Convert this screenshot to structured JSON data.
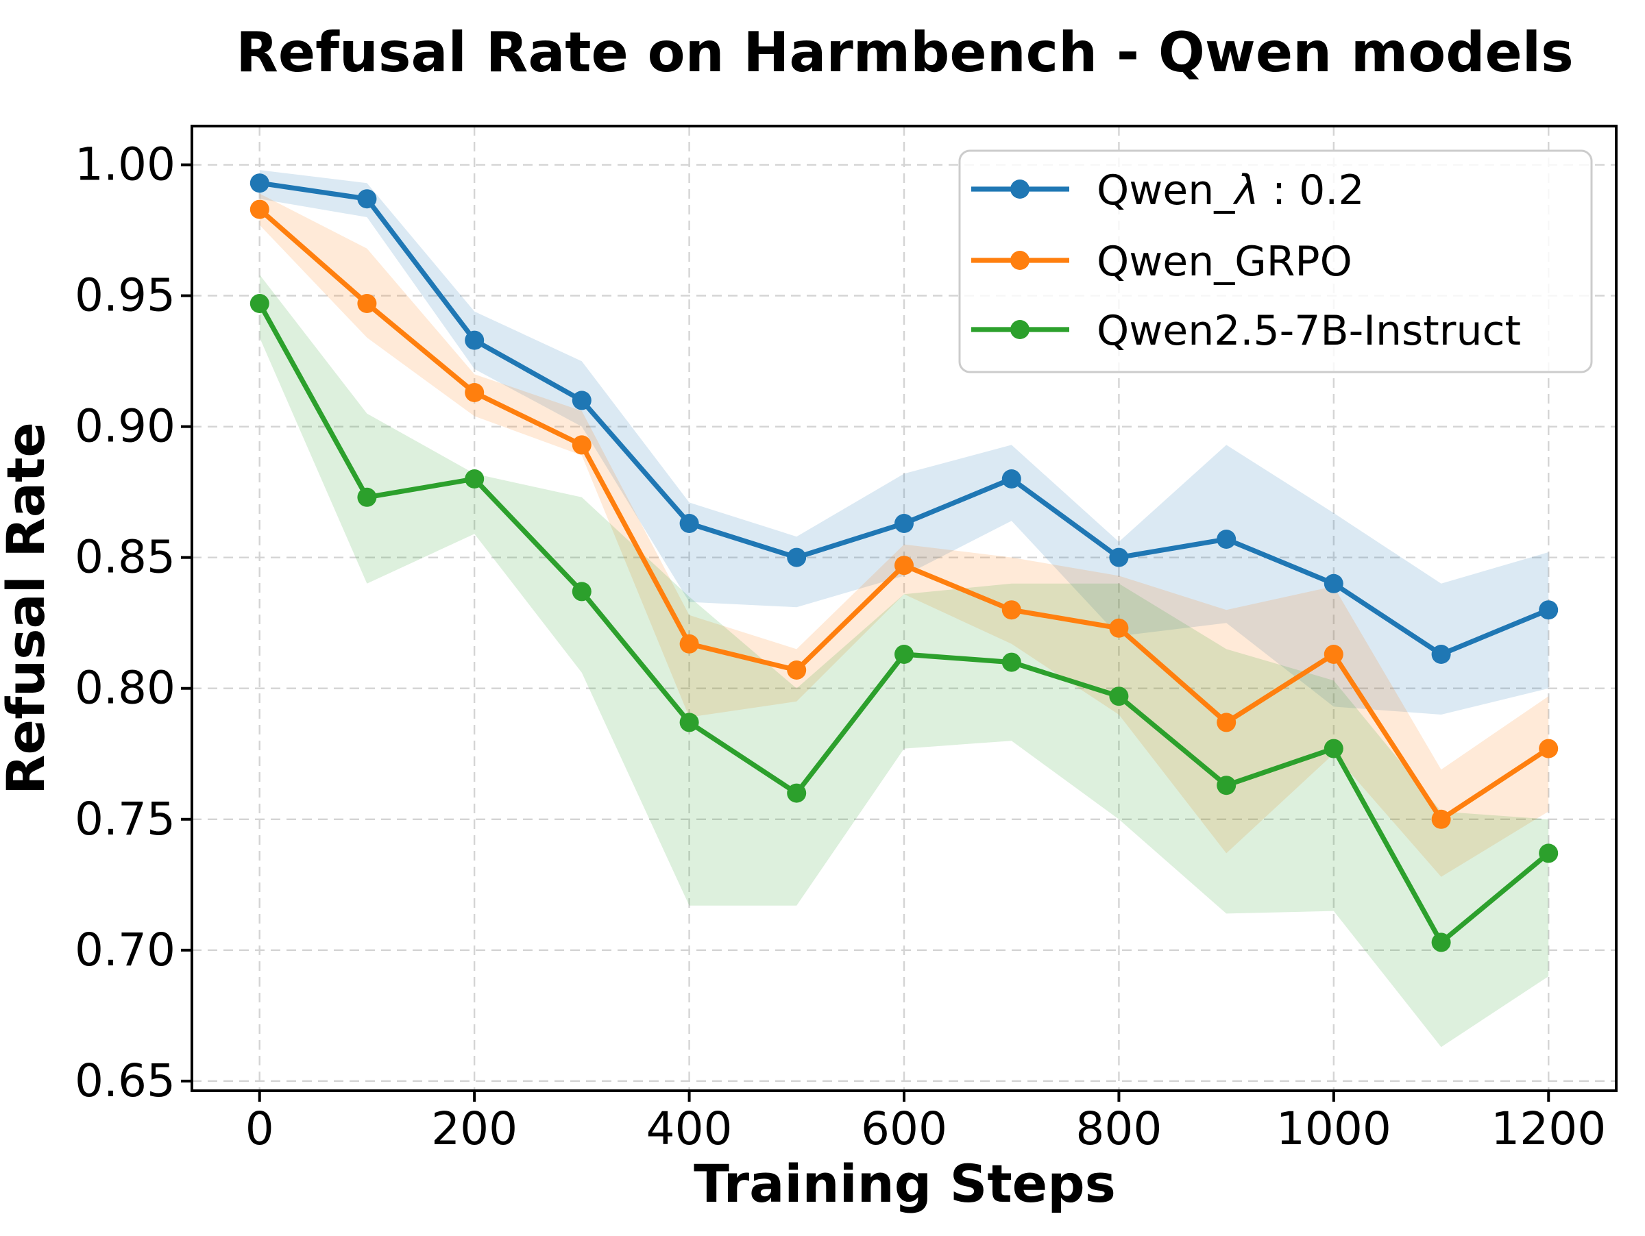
{
  "title": "Refusal Rate on Harmbench - Qwen models",
  "chart_data": {
    "type": "line",
    "title": "Refusal Rate on Harmbench - Qwen models",
    "xlabel": "Training Steps",
    "ylabel": "Refusal Rate",
    "x": [
      0,
      100,
      200,
      300,
      400,
      500,
      600,
      700,
      800,
      900,
      1000,
      1100,
      1200
    ],
    "xticks": [
      0,
      200,
      400,
      600,
      800,
      1000,
      1200
    ],
    "yticks": [
      0.65,
      0.7,
      0.75,
      0.8,
      0.85,
      0.9,
      0.95,
      1.0
    ],
    "xlim": [
      -63,
      1263
    ],
    "ylim": [
      0.6463,
      1.0148
    ],
    "grid": true,
    "grid_color": "#d4d4d4",
    "legend_position": "upper right",
    "band_opacity": 0.16,
    "series": [
      {
        "name": "Qwen_λ : 0.2",
        "label_parts": [
          {
            "t": "Qwen_"
          },
          {
            "t": "λ",
            "i": true
          },
          {
            "t": " : 0.2"
          }
        ],
        "color": "#1f77b4",
        "values": [
          0.993,
          0.987,
          0.933,
          0.91,
          0.863,
          0.85,
          0.863,
          0.88,
          0.85,
          0.857,
          0.84,
          0.813,
          0.83
        ],
        "band_low": [
          0.987,
          0.98,
          0.922,
          0.9,
          0.833,
          0.831,
          0.843,
          0.864,
          0.82,
          0.825,
          0.793,
          0.79,
          0.8
        ],
        "band_high": [
          0.998,
          0.993,
          0.944,
          0.925,
          0.871,
          0.858,
          0.882,
          0.893,
          0.856,
          0.893,
          0.867,
          0.84,
          0.852
        ]
      },
      {
        "name": "Qwen_GRPO",
        "label_parts": [
          {
            "t": "Qwen_GRPO"
          }
        ],
        "color": "#ff7f0e",
        "values": [
          0.983,
          0.947,
          0.913,
          0.893,
          0.817,
          0.807,
          0.847,
          0.83,
          0.823,
          0.787,
          0.813,
          0.75,
          0.777
        ],
        "band_low": [
          0.977,
          0.934,
          0.904,
          0.889,
          0.789,
          0.795,
          0.836,
          0.817,
          0.79,
          0.737,
          0.775,
          0.728,
          0.753
        ],
        "band_high": [
          0.989,
          0.968,
          0.92,
          0.906,
          0.828,
          0.815,
          0.855,
          0.85,
          0.843,
          0.83,
          0.839,
          0.769,
          0.797
        ]
      },
      {
        "name": "Qwen2.5-7B-Instruct",
        "label_parts": [
          {
            "t": "Qwen2.5-7B-Instruct"
          }
        ],
        "color": "#2ca02c",
        "values": [
          0.947,
          0.873,
          0.88,
          0.837,
          0.787,
          0.76,
          0.813,
          0.81,
          0.797,
          0.763,
          0.777,
          0.703,
          0.737
        ],
        "band_low": [
          0.934,
          0.84,
          0.859,
          0.806,
          0.717,
          0.717,
          0.777,
          0.78,
          0.75,
          0.714,
          0.715,
          0.663,
          0.69
        ],
        "band_high": [
          0.958,
          0.905,
          0.882,
          0.873,
          0.835,
          0.8,
          0.836,
          0.84,
          0.84,
          0.815,
          0.803,
          0.753,
          0.75
        ]
      }
    ]
  }
}
